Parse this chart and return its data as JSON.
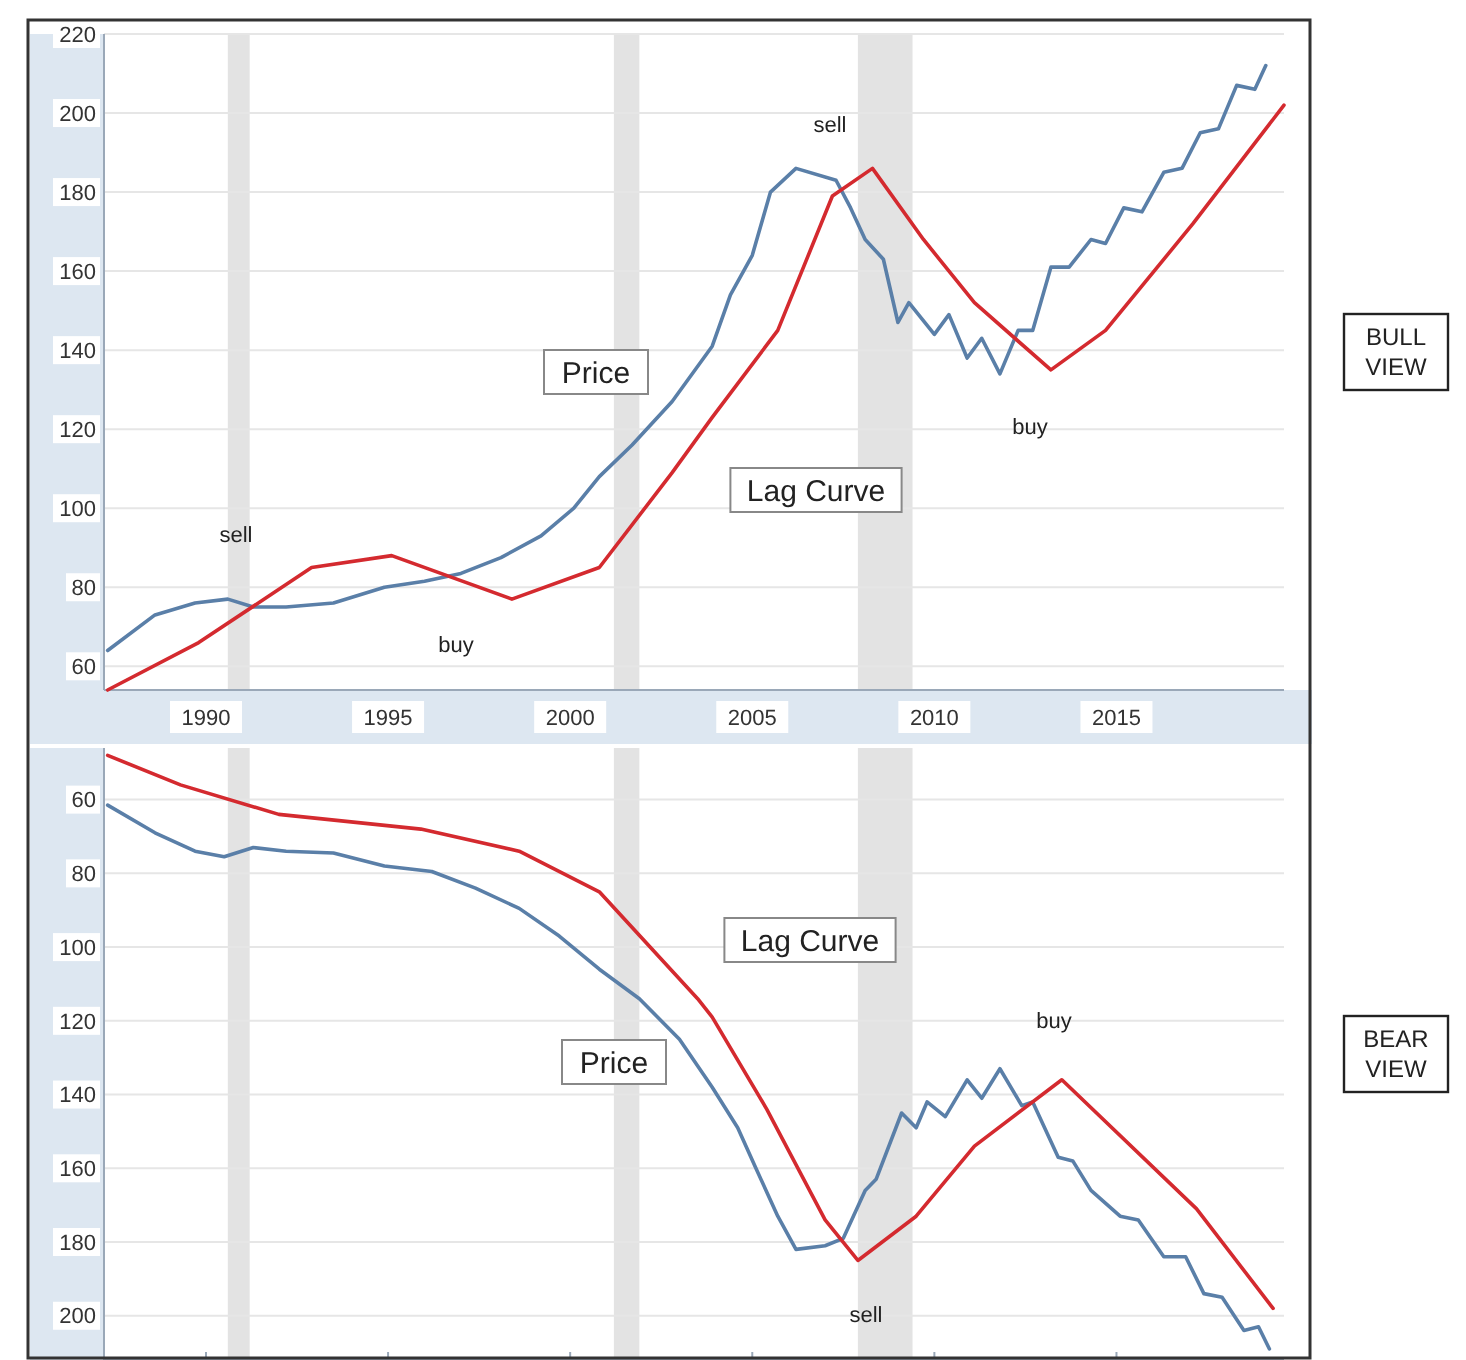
{
  "chart_data": [
    {
      "type": "line",
      "xlim": [
        1987.2,
        2019.6
      ],
      "xticks": [
        1990,
        1995,
        2000,
        2005,
        2010,
        2015
      ],
      "ylim": [
        54,
        220
      ],
      "yticks": [
        60,
        80,
        100,
        120,
        140,
        160,
        180,
        200,
        220
      ],
      "grid": "y",
      "marker": "none",
      "line_style": "solid",
      "series": [
        {
          "color": "#5a7fa8",
          "x": [
            1987.3,
            1988.6,
            1989.7,
            1990.6,
            1991.3,
            1992.2,
            1993.5,
            1994.9,
            1996,
            1997,
            1998.1,
            1999.2,
            2000.1,
            2000.8,
            2001.7,
            2002.8,
            2003.9,
            2004.4,
            2005,
            2005.5,
            2006.2,
            2007.3,
            2007.7,
            2008.1,
            2008.6,
            2009,
            2009.3,
            2010,
            2010.4,
            2010.9,
            2011.3,
            2011.8,
            2012.3,
            2012.7,
            2013.2,
            2013.7,
            2014.3,
            2014.7,
            2015.2,
            2015.7,
            2016.3,
            2016.8,
            2017.3,
            2017.8,
            2018.3,
            2018.8,
            2019.1
          ],
          "values": [
            64,
            73,
            76,
            77,
            75,
            75,
            76,
            80,
            81.5,
            83.5,
            87.5,
            93,
            100,
            108,
            116,
            127,
            141,
            154,
            164,
            180,
            186,
            183,
            176,
            168,
            163,
            147,
            152,
            144,
            149,
            138,
            143,
            134,
            145,
            145,
            161,
            161,
            168,
            167,
            176,
            175,
            185,
            186,
            195,
            196,
            207,
            206,
            212
          ]
        },
        {
          "color": "#d42a2f",
          "x": [
            1987.3,
            1989.8,
            1992.9,
            1995.1,
            1998.4,
            2000.8,
            2002.8,
            2003.9,
            2005.7,
            2007.2,
            2008.3,
            2009.7,
            2011.1,
            2013.2,
            2014.7,
            2017.1,
            2019.6
          ],
          "values": [
            54,
            66,
            85,
            88,
            77,
            85,
            109,
            123,
            145,
            179,
            186,
            168,
            152,
            135,
            145,
            172,
            202
          ]
        }
      ],
      "bands": [
        {
          "axis": "x",
          "from": 1990.6,
          "to": 1991.2,
          "color": "#e3e3e3"
        },
        {
          "axis": "x",
          "from": 2001.2,
          "to": 2001.9,
          "color": "#e3e3e3"
        },
        {
          "axis": "x",
          "from": 2007.9,
          "to": 2009.4,
          "color": "#e3e3e3"
        }
      ],
      "annotations": [
        "sell",
        "buy",
        "sell",
        "buy",
        "Price",
        "Lag Curve",
        "BULL VIEW"
      ]
    },
    {
      "type": "line",
      "xlim": [
        1987.2,
        2019.6
      ],
      "xticks": [
        1990,
        1995,
        2000,
        2005,
        2010,
        2015
      ],
      "ylim": [
        212,
        46
      ],
      "yticks": [
        60,
        80,
        100,
        120,
        140,
        160,
        180,
        200
      ],
      "grid": "y",
      "marker": "none",
      "line_style": "solid",
      "tick_labels": "y",
      "series": [
        {
          "color": "#5a7fa8",
          "x": [
            1987.3,
            1988.6,
            1989.7,
            1990.5,
            1991.3,
            1992.2,
            1993.5,
            1994.9,
            1996.2,
            1997.4,
            1998.6,
            1999.7,
            2000.8,
            2001.9,
            2003,
            2003.9,
            2004.6,
            2005.1,
            2005.7,
            2006.2,
            2007,
            2007.5,
            2008.1,
            2008.4,
            2009.1,
            2009.5,
            2009.8,
            2010.3,
            2010.9,
            2011.3,
            2011.8,
            2012.4,
            2012.7,
            2013.4,
            2013.8,
            2014.3,
            2015.1,
            2015.6,
            2016.3,
            2016.9,
            2017.4,
            2017.9,
            2018.5,
            2018.9,
            2019.2
          ],
          "values": [
            61.5,
            69,
            74,
            75.5,
            73,
            74,
            74.5,
            78,
            79.5,
            84,
            89.5,
            97,
            106,
            114,
            125,
            138,
            149,
            160,
            173,
            182,
            181,
            179,
            166,
            163,
            145,
            149,
            142,
            146,
            136,
            141,
            133,
            143,
            142,
            157,
            158,
            166,
            173,
            174,
            184,
            184,
            194,
            195,
            204,
            203,
            209
          ]
        },
        {
          "color": "#d42a2f",
          "x": [
            1987.3,
            1989.3,
            1992,
            1995.9,
            1998.6,
            2000.8,
            2003.5,
            2003.9,
            2005.4,
            2007,
            2007.9,
            2009.5,
            2011.1,
            2013.5,
            2017.2,
            2019.3
          ],
          "values": [
            48,
            56,
            64,
            68,
            74,
            85,
            114,
            119,
            144,
            174,
            185,
            173,
            154,
            136,
            171,
            198
          ]
        }
      ],
      "bands": [
        {
          "axis": "x",
          "from": 1990.6,
          "to": 1991.2,
          "color": "#e3e3e3"
        },
        {
          "axis": "x",
          "from": 2001.2,
          "to": 2001.9,
          "color": "#e3e3e3"
        },
        {
          "axis": "x",
          "from": 2007.9,
          "to": 2009.4,
          "color": "#e3e3e3"
        }
      ],
      "annotations": [
        "Lag Curve",
        "Price",
        "buy",
        "sell",
        "BEAR VIEW"
      ]
    }
  ]
}
